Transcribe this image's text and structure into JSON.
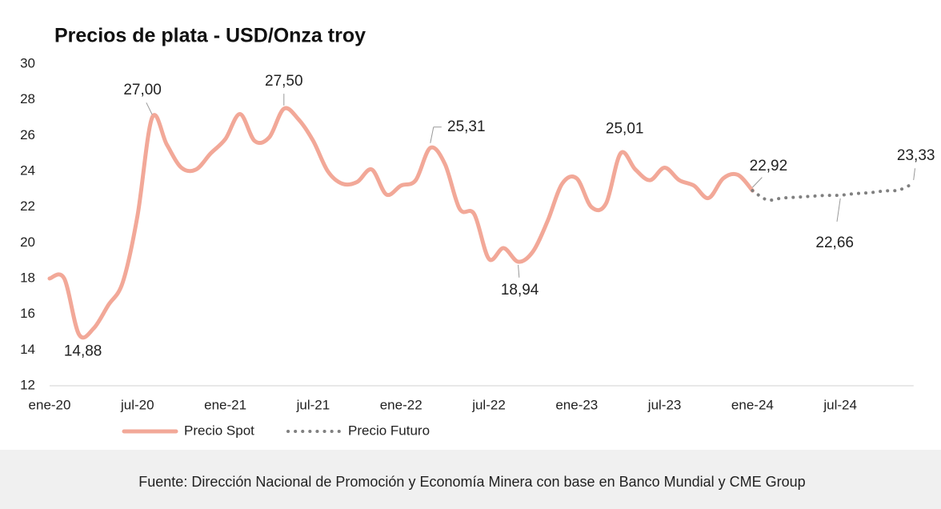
{
  "chart_data": {
    "type": "line",
    "title": "Precios de plata - USD/Onza troy",
    "categories": [
      "ene-20",
      null,
      null,
      null,
      null,
      null,
      "jul-20",
      null,
      null,
      null,
      null,
      null,
      "ene-21",
      null,
      null,
      null,
      null,
      null,
      "jul-21",
      null,
      null,
      null,
      null,
      null,
      "ene-22",
      null,
      null,
      null,
      null,
      null,
      "jul-22",
      null,
      null,
      null,
      null,
      null,
      "ene-23",
      null,
      null,
      null,
      null,
      null,
      "jul-23",
      null,
      null,
      null,
      null,
      null,
      "ene-24",
      null,
      null,
      null,
      null,
      null,
      "jul-24",
      null,
      null,
      null,
      null,
      null
    ],
    "series": [
      {
        "name": "Precio Spot",
        "color": "#f2a898",
        "style": "solid",
        "values": [
          18.0,
          18.0,
          14.88,
          15.2,
          16.5,
          17.8,
          21.5,
          27.0,
          25.5,
          24.2,
          24.1,
          25.0,
          25.8,
          27.2,
          25.7,
          25.9,
          27.5,
          26.9,
          25.7,
          24.0,
          23.3,
          23.4,
          24.1,
          22.7,
          23.2,
          23.5,
          25.31,
          24.4,
          21.9,
          21.6,
          19.1,
          19.7,
          18.94,
          19.5,
          21.2,
          23.3,
          23.6,
          22.0,
          22.2,
          25.01,
          24.1,
          23.5,
          24.2,
          23.5,
          23.2,
          22.5,
          23.6,
          23.8,
          22.92,
          null,
          null,
          null,
          null,
          null,
          null,
          null,
          null,
          null,
          null,
          null
        ],
        "value_labels": [
          null,
          null,
          "14,88",
          null,
          null,
          null,
          null,
          "27,00",
          null,
          null,
          null,
          null,
          null,
          null,
          null,
          null,
          "27,50",
          null,
          null,
          null,
          null,
          null,
          null,
          null,
          null,
          null,
          "25,31",
          null,
          null,
          null,
          null,
          null,
          "18,94",
          null,
          null,
          null,
          null,
          null,
          null,
          "25,01",
          null,
          null,
          null,
          null,
          null,
          null,
          null,
          null,
          "22,92",
          null,
          null,
          null,
          null,
          null,
          null,
          null,
          null,
          null,
          null,
          null
        ]
      },
      {
        "name": "Precio Futuro",
        "color": "#808080",
        "style": "dotted",
        "values": [
          null,
          null,
          null,
          null,
          null,
          null,
          null,
          null,
          null,
          null,
          null,
          null,
          null,
          null,
          null,
          null,
          null,
          null,
          null,
          null,
          null,
          null,
          null,
          null,
          null,
          null,
          null,
          null,
          null,
          null,
          null,
          null,
          null,
          null,
          null,
          null,
          null,
          null,
          null,
          null,
          null,
          null,
          null,
          null,
          null,
          null,
          null,
          null,
          22.92,
          22.4,
          22.5,
          22.55,
          22.6,
          22.65,
          22.66,
          22.75,
          22.8,
          22.9,
          22.95,
          23.33
        ],
        "value_labels": [
          null,
          null,
          null,
          null,
          null,
          null,
          null,
          null,
          null,
          null,
          null,
          null,
          null,
          null,
          null,
          null,
          null,
          null,
          null,
          null,
          null,
          null,
          null,
          null,
          null,
          null,
          null,
          null,
          null,
          null,
          null,
          null,
          null,
          null,
          null,
          null,
          null,
          null,
          null,
          null,
          null,
          null,
          null,
          null,
          null,
          null,
          null,
          null,
          null,
          null,
          null,
          null,
          null,
          null,
          "22,66",
          null,
          null,
          null,
          null,
          "23,33"
        ]
      }
    ],
    "ylim": [
      12,
      30
    ],
    "yticks": [
      12,
      14,
      16,
      18,
      20,
      22,
      24,
      26,
      28,
      30
    ],
    "grid": false,
    "legend": "bottom-left",
    "source": "Fuente: Dirección Nacional de Promoción y Economía Minera con base en Banco Mundial y CME Group"
  }
}
